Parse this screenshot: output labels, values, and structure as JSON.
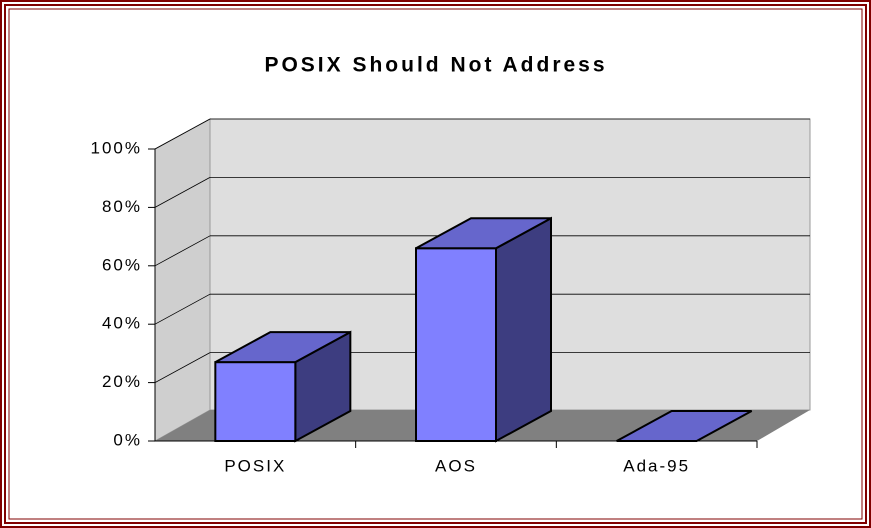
{
  "chart_data": {
    "type": "bar3d",
    "title": "POSIX Should Not Address",
    "categories": [
      "POSIX",
      "AOS",
      "Ada-95"
    ],
    "values": [
      27,
      66,
      0
    ],
    "color": "#8080ff",
    "ylim": [
      0,
      100
    ],
    "yticks": [
      {
        "value": 0,
        "label": "0%"
      },
      {
        "value": 20,
        "label": "20%"
      },
      {
        "value": 40,
        "label": "40%"
      },
      {
        "value": 60,
        "label": "60%"
      },
      {
        "value": 80,
        "label": "80%"
      },
      {
        "value": 100,
        "label": "100%"
      }
    ],
    "grid": true
  }
}
